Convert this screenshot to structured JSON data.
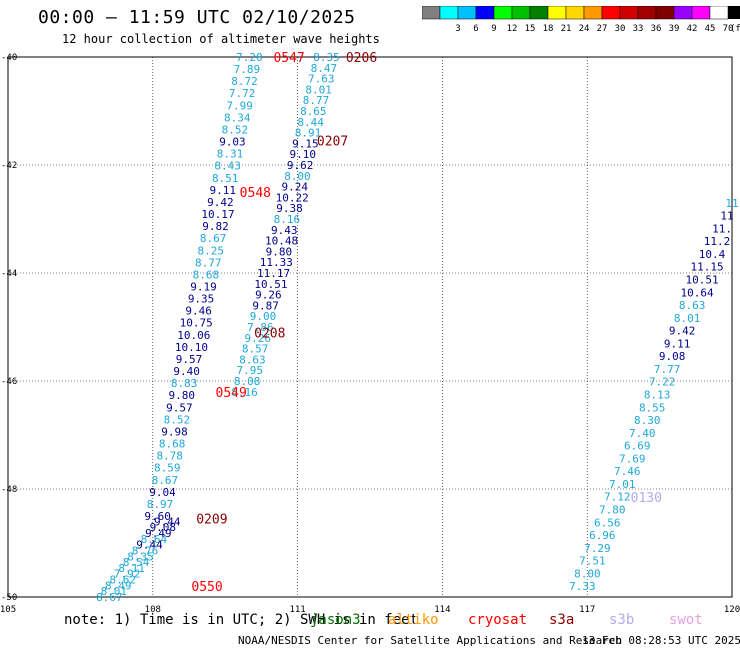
{
  "title": "00:00 – 11:59 UTC 02/10/2025",
  "subtitle": "12 hour collection of altimeter wave heights",
  "colorbar": {
    "unit": "(ft)",
    "bins": [
      {
        "label": "",
        "color": "#808080"
      },
      {
        "label": "3",
        "color": "#00ffff"
      },
      {
        "label": "6",
        "color": "#00bfff"
      },
      {
        "label": "9",
        "color": "#0000ff"
      },
      {
        "label": "12",
        "color": "#00ff00"
      },
      {
        "label": "15",
        "color": "#00c000"
      },
      {
        "label": "18",
        "color": "#008000"
      },
      {
        "label": "21",
        "color": "#ffff00"
      },
      {
        "label": "24",
        "color": "#ffd700"
      },
      {
        "label": "27",
        "color": "#ff9900"
      },
      {
        "label": "30",
        "color": "#ff0000"
      },
      {
        "label": "33",
        "color": "#d00000"
      },
      {
        "label": "36",
        "color": "#a00000"
      },
      {
        "label": "39",
        "color": "#800000"
      },
      {
        "label": "42",
        "color": "#9900ff"
      },
      {
        "label": "45",
        "color": "#ff00ff"
      },
      {
        "label": "70",
        "color": "#ffffff"
      }
    ]
  },
  "map": {
    "lon_range": [
      105,
      120
    ],
    "lat_range": [
      -50,
      -40
    ],
    "lon_ticks": [
      "105",
      "108",
      "111",
      "114",
      "117",
      "120"
    ],
    "lat_ticks": [
      "-40",
      "-42",
      "-44",
      "-46",
      "-48",
      "-50"
    ],
    "lon_tick_values": [
      105,
      108,
      111,
      114,
      117,
      120
    ],
    "lat_tick_values": [
      -40,
      -42,
      -44,
      -46,
      -48,
      -50
    ],
    "colors": {
      "light": "#1fa8d8",
      "dark": "#00008b",
      "time_red": "#ff0000",
      "time_dark": "#8b0000",
      "time_lav": "#b8a8f0"
    },
    "tracks": [
      {
        "name": "track-a",
        "start": [
          110.0,
          -40.0
        ],
        "end": [
          108.1,
          -48.5
        ],
        "labels": [
          {
            "t": "7.20",
            "c": "light"
          },
          {
            "t": "7.89",
            "c": "light"
          },
          {
            "t": "8.72",
            "c": "light"
          },
          {
            "t": "7.72",
            "c": "light"
          },
          {
            "t": "7.99",
            "c": "light"
          },
          {
            "t": "8.34",
            "c": "light"
          },
          {
            "t": "8.52",
            "c": "light"
          },
          {
            "t": "9.03",
            "c": "dark"
          },
          {
            "t": "8.31",
            "c": "light"
          },
          {
            "t": "8.43",
            "c": "light"
          },
          {
            "t": "8.51",
            "c": "light"
          },
          {
            "t": "9.11",
            "c": "dark"
          },
          {
            "t": "9.42",
            "c": "dark"
          },
          {
            "t": "10.17",
            "c": "dark"
          },
          {
            "t": "9.82",
            "c": "dark"
          },
          {
            "t": "8.67",
            "c": "light"
          },
          {
            "t": "8.25",
            "c": "light"
          },
          {
            "t": "8.77",
            "c": "light"
          },
          {
            "t": "8.68",
            "c": "light"
          },
          {
            "t": "9.19",
            "c": "dark"
          },
          {
            "t": "9.35",
            "c": "dark"
          },
          {
            "t": "9.46",
            "c": "dark"
          },
          {
            "t": "10.75",
            "c": "dark"
          },
          {
            "t": "10.06",
            "c": "dark"
          },
          {
            "t": "10.10",
            "c": "dark"
          },
          {
            "t": "9.57",
            "c": "dark"
          },
          {
            "t": "9.40",
            "c": "dark"
          },
          {
            "t": "8.83",
            "c": "light"
          },
          {
            "t": "9.80",
            "c": "dark"
          },
          {
            "t": "9.57",
            "c": "dark"
          },
          {
            "t": "8.52",
            "c": "light"
          },
          {
            "t": "9.98",
            "c": "dark"
          },
          {
            "t": "8.68",
            "c": "light"
          },
          {
            "t": "8.78",
            "c": "light"
          },
          {
            "t": "8.59",
            "c": "light"
          },
          {
            "t": "8.67",
            "c": "light"
          },
          {
            "t": "9.04",
            "c": "dark"
          },
          {
            "t": "8.97",
            "c": "light"
          },
          {
            "t": "9.60",
            "c": "dark"
          }
        ]
      },
      {
        "name": "track-b",
        "start": [
          108.3,
          -48.6
        ],
        "end": [
          107.1,
          -50.0
        ],
        "labels": [
          {
            "t": "9.44",
            "c": "dark"
          },
          {
            "t": "9.08",
            "c": "dark"
          },
          {
            "t": "9.49",
            "c": "dark"
          },
          {
            "t": "8.64",
            "c": "light"
          },
          {
            "t": "9.44",
            "c": "dark"
          },
          {
            "t": "8.76",
            "c": "light"
          },
          {
            "t": "8.35",
            "c": "light"
          },
          {
            "t": "8.54",
            "c": "light"
          },
          {
            "t": "8.11",
            "c": "light"
          },
          {
            "t": "7.92",
            "c": "light"
          },
          {
            "t": "8.62",
            "c": "light"
          },
          {
            "t": "8.49",
            "c": "light"
          },
          {
            "t": "8.01",
            "c": "light"
          },
          {
            "t": "8.67",
            "c": "light"
          }
        ]
      },
      {
        "name": "track-c",
        "start": [
          111.6,
          -40.0
        ],
        "end": [
          109.9,
          -46.2
        ],
        "labels": [
          {
            "t": "8.35",
            "c": "light"
          },
          {
            "t": "8.47",
            "c": "light"
          },
          {
            "t": "7.63",
            "c": "light"
          },
          {
            "t": "8.01",
            "c": "light"
          },
          {
            "t": "8.77",
            "c": "light"
          },
          {
            "t": "8.65",
            "c": "light"
          },
          {
            "t": "8.44",
            "c": "light"
          },
          {
            "t": "8.91",
            "c": "light"
          },
          {
            "t": "9.15",
            "c": "dark"
          },
          {
            "t": "9.10",
            "c": "dark"
          },
          {
            "t": "9.62",
            "c": "dark"
          },
          {
            "t": "8.00",
            "c": "light"
          },
          {
            "t": "9.24",
            "c": "dark"
          },
          {
            "t": "10.22",
            "c": "dark"
          },
          {
            "t": "9.38",
            "c": "dark"
          },
          {
            "t": "8.16",
            "c": "light"
          },
          {
            "t": "9.43",
            "c": "dark"
          },
          {
            "t": "10.48",
            "c": "dark"
          },
          {
            "t": "9.80",
            "c": "dark"
          },
          {
            "t": "11.33",
            "c": "dark"
          },
          {
            "t": "11.17",
            "c": "dark"
          },
          {
            "t": "10.51",
            "c": "dark"
          },
          {
            "t": "9.26",
            "c": "dark"
          },
          {
            "t": "9.87",
            "c": "dark"
          },
          {
            "t": "9.00",
            "c": "light"
          },
          {
            "t": "7.86",
            "c": "light"
          },
          {
            "t": "9.26",
            "c": "light"
          },
          {
            "t": "8.57",
            "c": "light"
          },
          {
            "t": "8.63",
            "c": "light"
          },
          {
            "t": "7.95",
            "c": "light"
          },
          {
            "t": "8.08",
            "c": "light"
          },
          {
            "t": "8.16",
            "c": "light"
          }
        ]
      },
      {
        "name": "track-d",
        "start": [
          120.0,
          -42.7
        ],
        "end": [
          116.9,
          -49.8
        ],
        "labels": [
          {
            "t": "11",
            "c": "light"
          },
          {
            "t": "11",
            "c": "dark"
          },
          {
            "t": "11.",
            "c": "dark"
          },
          {
            "t": "11.2",
            "c": "dark"
          },
          {
            "t": "10.4",
            "c": "dark"
          },
          {
            "t": "11.15",
            "c": "dark"
          },
          {
            "t": "10.51",
            "c": "dark"
          },
          {
            "t": "10.64",
            "c": "dark"
          },
          {
            "t": "8.63",
            "c": "light"
          },
          {
            "t": "8.01",
            "c": "light"
          },
          {
            "t": "9.42",
            "c": "dark"
          },
          {
            "t": "9.11",
            "c": "dark"
          },
          {
            "t": "9.08",
            "c": "dark"
          },
          {
            "t": "7.77",
            "c": "light"
          },
          {
            "t": "7.22",
            "c": "light"
          },
          {
            "t": "8.13",
            "c": "light"
          },
          {
            "t": "8.55",
            "c": "light"
          },
          {
            "t": "8.30",
            "c": "light"
          },
          {
            "t": "7.40",
            "c": "light"
          },
          {
            "t": "6.69",
            "c": "light"
          },
          {
            "t": "7.69",
            "c": "light"
          },
          {
            "t": "7.46",
            "c": "light"
          },
          {
            "t": "7.01",
            "c": "light"
          },
          {
            "t": "7.12",
            "c": "light"
          },
          {
            "t": "7.80",
            "c": "light"
          },
          {
            "t": "6.56",
            "c": "light"
          },
          {
            "t": "6.96",
            "c": "light"
          },
          {
            "t": "7.29",
            "c": "light"
          },
          {
            "t": "7.51",
            "c": "light"
          },
          {
            "t": "8.00",
            "c": "light"
          },
          {
            "t": "7.33",
            "c": "light"
          }
        ]
      }
    ],
    "time_labels": [
      {
        "t": "0547",
        "lon": 110.5,
        "lat": -40.0,
        "c": "time_red"
      },
      {
        "t": "0206",
        "lon": 112.0,
        "lat": -40.0,
        "c": "time_dark"
      },
      {
        "t": "0207",
        "lon": 111.4,
        "lat": -41.55,
        "c": "time_dark"
      },
      {
        "t": "0548",
        "lon": 109.8,
        "lat": -42.5,
        "c": "time_red"
      },
      {
        "t": "0208",
        "lon": 110.1,
        "lat": -45.1,
        "c": "time_dark"
      },
      {
        "t": "0549",
        "lon": 109.3,
        "lat": -46.2,
        "c": "time_red"
      },
      {
        "t": "0209",
        "lon": 108.9,
        "lat": -48.55,
        "c": "time_dark"
      },
      {
        "t": "0550",
        "lon": 108.8,
        "lat": -49.8,
        "c": "time_red"
      },
      {
        "t": "0130",
        "lon": 117.9,
        "lat": -48.15,
        "c": "time_lav"
      }
    ]
  },
  "legend": [
    {
      "t": "note:  1) Time is in UTC; 2) SWH is in feet",
      "c": "#000000"
    },
    {
      "t": "jason3",
      "c": "#007000"
    },
    {
      "t": "altiko",
      "c": "#ff9900"
    },
    {
      "t": "cryosat",
      "c": "#ff0000"
    },
    {
      "t": "s3a",
      "c": "#8b0000"
    },
    {
      "t": "s3b",
      "c": "#b8a8f0"
    },
    {
      "t": "swot",
      "c": "#e8a0e0"
    }
  ],
  "footer_left": "NOAA/NESDIS Center for Satellite Applications and Research",
  "footer_right": "13 Feb 08:28:53 UTC 2025"
}
